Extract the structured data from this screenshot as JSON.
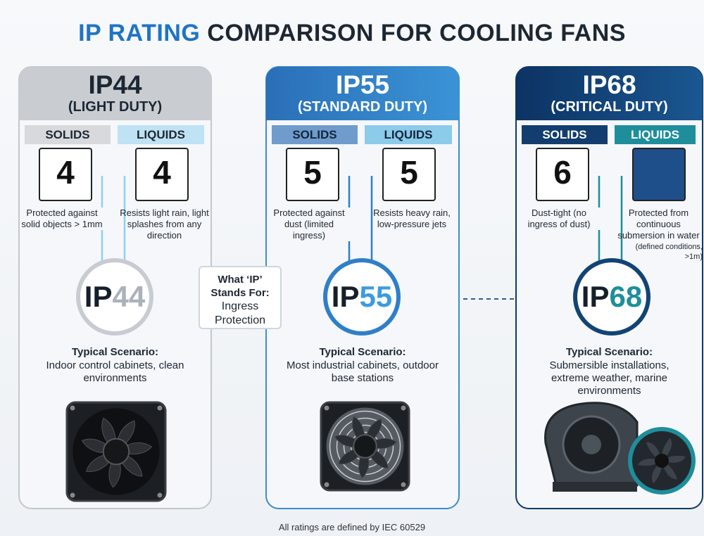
{
  "title": {
    "highlight": "IP RATING",
    "rest": "COMPARISON FOR COOLING FANS"
  },
  "columns": [
    {
      "code": "IP44",
      "duty": "(LIGHT DUTY)",
      "solids": {
        "label": "SOLIDS",
        "digit": "4",
        "description": "Protected against solid objects > 1mm"
      },
      "liquids": {
        "label": "LIQUIDS",
        "digit": "4",
        "description": "Resists light rain, light splashes from any direction"
      },
      "badge": {
        "prefix": "IP",
        "number": "44"
      },
      "scenario": {
        "label": "Typical Scenario:",
        "text": "Indoor control cabinets, clean environments"
      }
    },
    {
      "code": "IP55",
      "duty": "(STANDARD DUTY)",
      "solids": {
        "label": "SOLIDS",
        "digit": "5",
        "description": "Protected against dust (limited ingress)"
      },
      "liquids": {
        "label": "LIQUIDS",
        "digit": "5",
        "description": "Resists heavy rain, low-pressure jets"
      },
      "badge": {
        "prefix": "IP",
        "number": "55"
      },
      "scenario": {
        "label": "Typical Scenario:",
        "text": "Most industrial cabinets, outdoor base stations"
      }
    },
    {
      "code": "IP68",
      "duty": "(CRITICAL DUTY)",
      "solids": {
        "label": "SOLIDS",
        "digit": "6",
        "description": "Dust-tight (no ingress of dust)"
      },
      "liquids": {
        "label": "LIQUIDS",
        "description": "Protected from continuous submersion in water",
        "note": "(defined conditions, >1m)"
      },
      "badge": {
        "prefix": "IP",
        "number": "68"
      },
      "scenario": {
        "label": "Typical Scenario:",
        "text": "Submersible installations, extreme weather, marine environments"
      }
    }
  ],
  "center": {
    "question": "What ‘IP’ Stands For:",
    "answer": "Ingress Protection"
  },
  "footer": "All ratings are defined by IEC 60529"
}
